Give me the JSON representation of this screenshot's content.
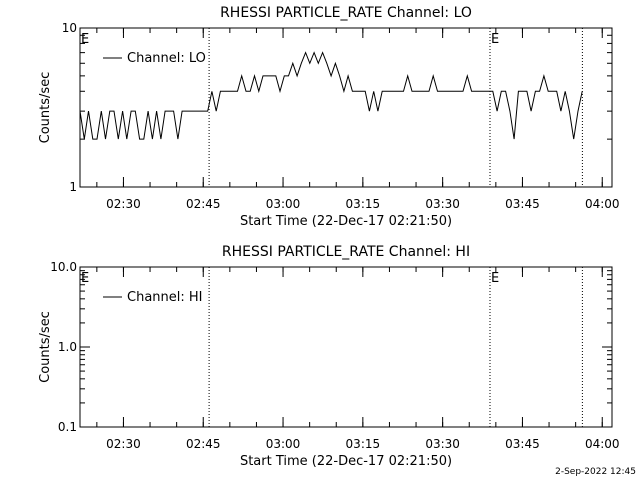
{
  "chart_data": [
    {
      "type": "line",
      "title": "RHESSI PARTICLE_RATE Channel: LO",
      "xlabel": "Start Time (22-Dec-17 02:21:50)",
      "ylabel": "Counts/sec",
      "log_y": true,
      "legend": "upper left",
      "xlim": [
        0,
        6000
      ],
      "xticks": [
        {
          "value": 490,
          "label": "02:30"
        },
        {
          "value": 1390,
          "label": "02:45"
        },
        {
          "value": 2290,
          "label": "03:00"
        },
        {
          "value": 3190,
          "label": "03:15"
        },
        {
          "value": 4090,
          "label": "03:30"
        },
        {
          "value": 4990,
          "label": "03:45"
        },
        {
          "value": 5890,
          "label": "04:00"
        }
      ],
      "ylim": [
        1,
        10
      ],
      "yticks": [
        1,
        10
      ],
      "vlines": [
        1456,
        4624,
        5666
      ],
      "annotations": [
        {
          "x": 0,
          "text": "E"
        },
        {
          "x": 4624,
          "text": "E"
        }
      ],
      "x": [
        0,
        48,
        96,
        144,
        192,
        240,
        288,
        336,
        384,
        432,
        480,
        528,
        576,
        624,
        672,
        720,
        768,
        816,
        864,
        912,
        960,
        1008,
        1056,
        1104,
        1152,
        1200,
        1248,
        1296,
        1344,
        1392,
        1440,
        1488,
        1536,
        1584,
        1632,
        1680,
        1728,
        1776,
        1824,
        1872,
        1920,
        1968,
        2016,
        2064,
        2112,
        2160,
        2208,
        2256,
        2304,
        2352,
        2400,
        2448,
        2496,
        2544,
        2592,
        2640,
        2688,
        2736,
        2784,
        2832,
        2880,
        2928,
        2976,
        3024,
        3072,
        3120,
        3168,
        3216,
        3264,
        3312,
        3360,
        3408,
        3456,
        3504,
        3552,
        3600,
        3648,
        3696,
        3744,
        3792,
        3840,
        3888,
        3936,
        3984,
        4032,
        4080,
        4128,
        4176,
        4224,
        4272,
        4320,
        4368,
        4416,
        4464,
        4512,
        4560,
        4608,
        4656,
        4704,
        4752,
        4800,
        4848,
        4896,
        4944,
        4992,
        5040,
        5088,
        5136,
        5184,
        5232,
        5280,
        5328,
        5376,
        5424,
        5472,
        5520,
        5568,
        5616,
        5664
      ],
      "series": [
        {
          "name": "Channel: LO",
          "color": "#000000",
          "values": [
            3,
            2,
            3,
            2,
            2,
            3,
            2,
            3,
            3,
            2,
            3,
            2,
            3,
            3,
            2,
            2,
            3,
            2,
            3,
            2,
            3,
            3,
            3,
            2,
            3,
            3,
            3,
            3,
            3,
            3,
            3,
            4,
            3,
            4,
            4,
            4,
            4,
            4,
            5,
            4,
            4,
            5,
            4,
            5,
            5,
            5,
            5,
            4,
            5,
            5,
            6,
            5,
            6,
            7,
            6,
            7,
            6,
            7,
            6,
            5,
            6,
            5,
            4,
            5,
            4,
            4,
            4,
            4,
            3,
            4,
            3,
            4,
            4,
            4,
            4,
            4,
            4,
            5,
            4,
            4,
            4,
            4,
            4,
            5,
            4,
            4,
            4,
            4,
            4,
            4,
            4,
            5,
            4,
            4,
            4,
            4,
            4,
            4,
            3,
            4,
            4,
            3,
            2,
            4,
            4,
            4,
            3,
            4,
            4,
            5,
            4,
            4,
            4,
            3,
            4,
            3,
            2,
            3,
            4
          ]
        }
      ]
    },
    {
      "type": "line",
      "title": "RHESSI PARTICLE_RATE Channel: HI",
      "xlabel": "Start Time (22-Dec-17 02:21:50)",
      "ylabel": "Counts/sec",
      "log_y": true,
      "legend": "upper left",
      "xlim": [
        0,
        6000
      ],
      "xticks": [
        {
          "value": 490,
          "label": "02:30"
        },
        {
          "value": 1390,
          "label": "02:45"
        },
        {
          "value": 2290,
          "label": "03:00"
        },
        {
          "value": 3190,
          "label": "03:15"
        },
        {
          "value": 4090,
          "label": "03:30"
        },
        {
          "value": 4990,
          "label": "03:45"
        },
        {
          "value": 5890,
          "label": "04:00"
        }
      ],
      "ylim": [
        0.1,
        10
      ],
      "yticks": [
        0.1,
        {
          "value": 1,
          "label": "1.0"
        },
        {
          "value": 10,
          "label": "10.0"
        }
      ],
      "vlines": [
        1456,
        4624,
        5666
      ],
      "annotations": [
        {
          "x": 0,
          "text": "E"
        },
        {
          "x": 4624,
          "text": "E"
        }
      ],
      "x": [],
      "series": [
        {
          "name": "Channel: HI",
          "color": "#000000",
          "values": []
        }
      ]
    }
  ],
  "footer": "2-Sep-2022 12:45"
}
